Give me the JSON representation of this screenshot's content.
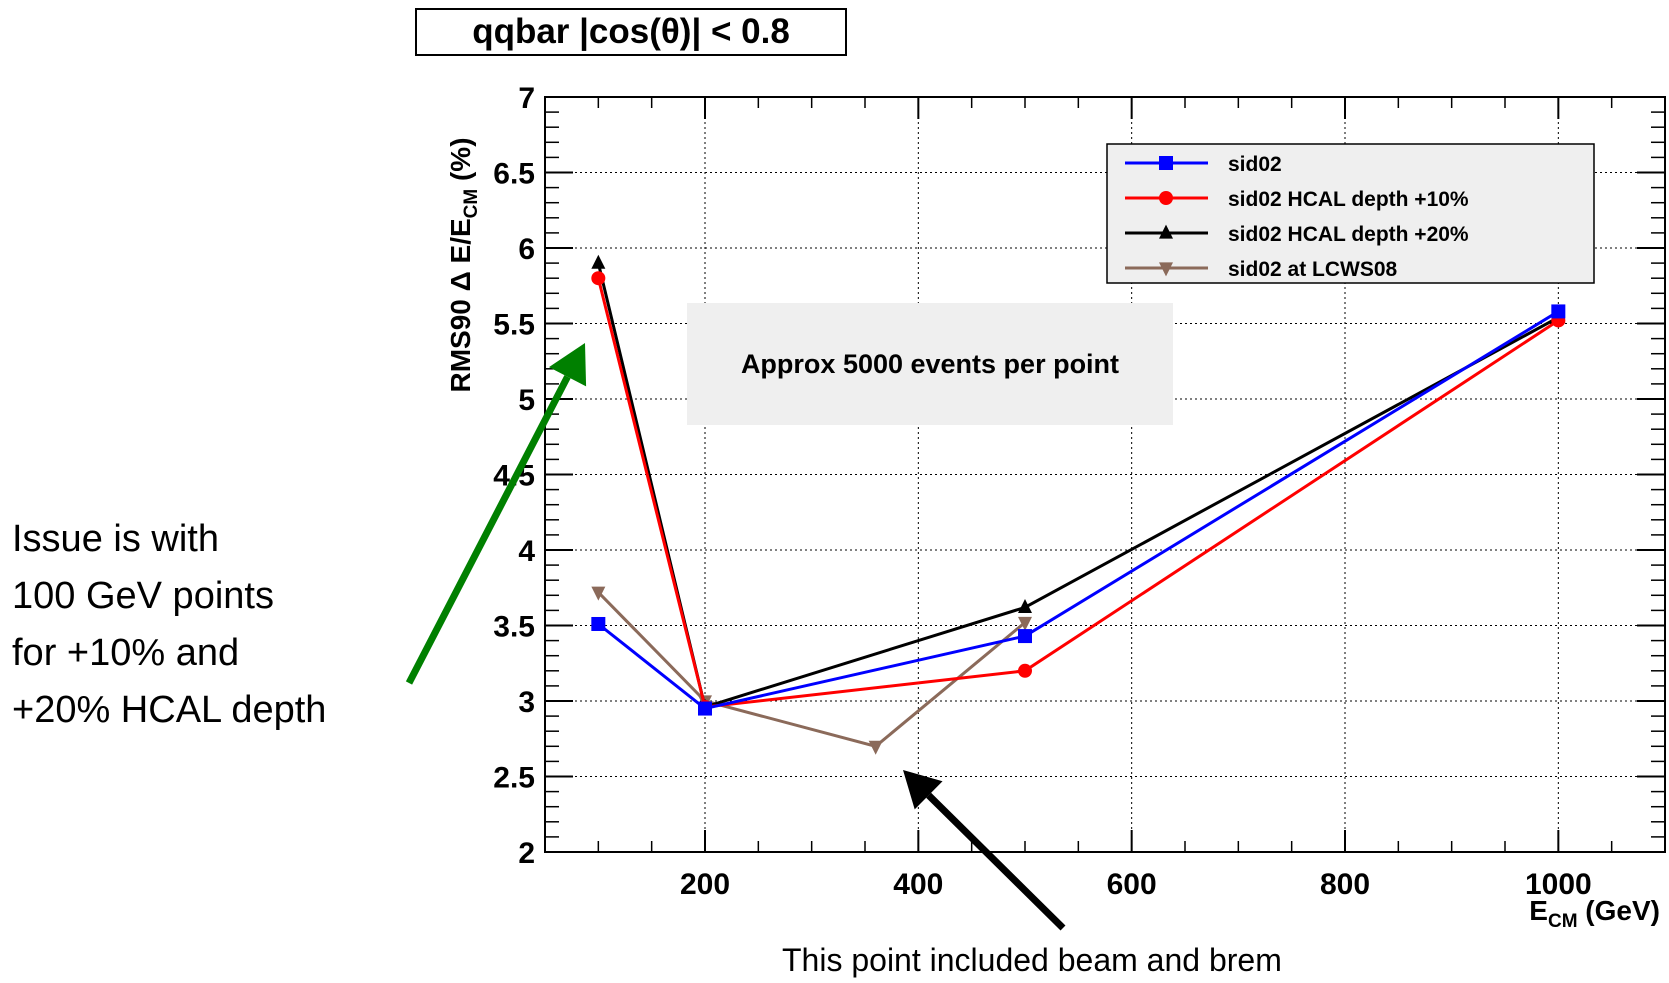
{
  "chart_data": {
    "type": "line",
    "title": "qqbar |cos(θ)| < 0.8",
    "xlabel": "E_CM (GeV)",
    "ylabel": "RMS90 Δ E/E_CM (%)",
    "xlim": [
      50,
      1100
    ],
    "ylim": [
      2,
      7
    ],
    "x_ticks": [
      200,
      400,
      600,
      800,
      1000
    ],
    "y_ticks": [
      2,
      2.5,
      3,
      3.5,
      4,
      4.5,
      5,
      5.5,
      6,
      6.5,
      7
    ],
    "y_tick_labels": [
      "2",
      "2.5",
      "3",
      "3.5",
      "4",
      "4.5",
      "5",
      "5.5",
      "6",
      "6.5",
      "7"
    ],
    "grid": true,
    "legend_position": "top-right",
    "series": [
      {
        "name": "sid02",
        "color": "#0000ff",
        "marker": "square",
        "points": [
          [
            100,
            3.51
          ],
          [
            200,
            2.95
          ],
          [
            500,
            3.43
          ],
          [
            1000,
            5.58
          ]
        ]
      },
      {
        "name": "sid02 HCAL depth +10%",
        "color": "#ff0000",
        "marker": "circle",
        "points": [
          [
            100,
            5.8
          ],
          [
            200,
            2.96
          ],
          [
            500,
            3.2
          ],
          [
            1000,
            5.52
          ]
        ]
      },
      {
        "name": "sid02 HCAL depth +20%",
        "color": "#000000",
        "marker": "triangle-up",
        "points": [
          [
            100,
            5.9
          ],
          [
            200,
            2.96
          ],
          [
            500,
            3.62
          ],
          [
            1000,
            5.54
          ]
        ]
      },
      {
        "name": "sid02 at LCWS08",
        "color": "#8b6a5a",
        "marker": "triangle-down",
        "points": [
          [
            100,
            3.72
          ],
          [
            200,
            3.0
          ],
          [
            360,
            2.7
          ],
          [
            500,
            3.52
          ]
        ]
      }
    ]
  },
  "annotations": {
    "events_note": "Approx 5000 events per point",
    "issue_note_lines": [
      "Issue is with",
      "100 GeV points",
      "for +10% and",
      "+20% HCAL depth"
    ],
    "brem_note": "This point included beam and brem",
    "issue_arrow_color": "#008000",
    "brem_arrow_color": "#000000"
  }
}
